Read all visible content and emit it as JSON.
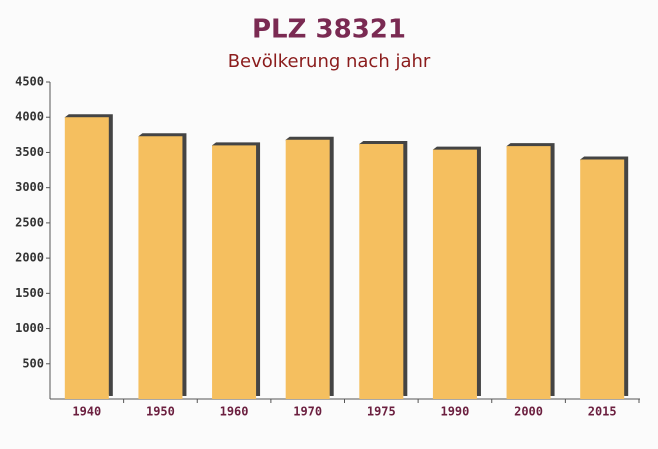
{
  "chart_data": {
    "type": "bar",
    "title": "PLZ 38321",
    "subtitle": "Bevölkerung nach jahr",
    "categories": [
      "1940",
      "1950",
      "1960",
      "1970",
      "1975",
      "1990",
      "2000",
      "2015"
    ],
    "values": [
      4000,
      3730,
      3600,
      3680,
      3620,
      3540,
      3590,
      3400
    ],
    "color": "#f5bf5f",
    "ylim": [
      0,
      4500
    ],
    "yticks": [
      500,
      1000,
      1500,
      2000,
      2500,
      3000,
      3500,
      4000,
      4500
    ],
    "grid": false
  }
}
